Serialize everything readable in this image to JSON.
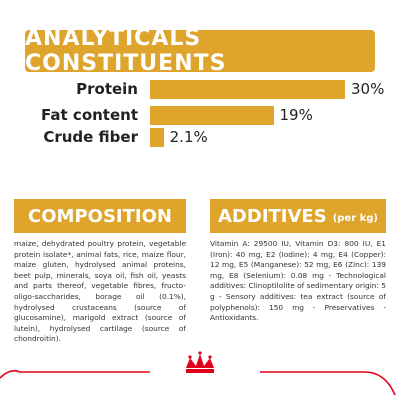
{
  "header": {
    "title": "ANALYTICALS CONSTITUENTS"
  },
  "chart_data": {
    "type": "bar",
    "categories": [
      "Protein",
      "Fat content",
      "Crude fiber"
    ],
    "values": [
      30,
      19,
      2.1
    ],
    "value_labels": [
      "30%",
      "19%",
      "2.1%"
    ],
    "color": "#dea42b"
  },
  "composition": {
    "title": "COMPOSITION",
    "text": "maize, dehydrated poultry protein, vegetable protein isolate*, animal fats, rice, maize flour, maize gluten, hydrolysed animal proteins, beet pulp, minerals, soya oil, fish oil, yeasts and parts thereof, vegetable fibres, fructo-oligo-saccharides, borage oil (0.1%), hydrolysed crustaceans (source of glucosamine), marigold extract (source of lutein), hydrolysed cartilage (source of chondroitin)."
  },
  "additives": {
    "title": "ADDITIVES",
    "subtitle": "(per kg)",
    "text": "Vitamin A: 29500 IU, Vitamin D3: 800 IU, E1 (Iron): 40 mg, E2 (Iodine): 4 mg, E4 (Copper): 12 mg, E5 (Manganese): 52 mg, E6 (Zinc): 139 mg, E8 (Selenium): 0.08 mg - Technological additives: Clinoptilolite of sedimentary origin: 5 g - Sensory additives: tea extract (source of polyphenols): 150 mg - Preservatives - Antioxidants."
  }
}
